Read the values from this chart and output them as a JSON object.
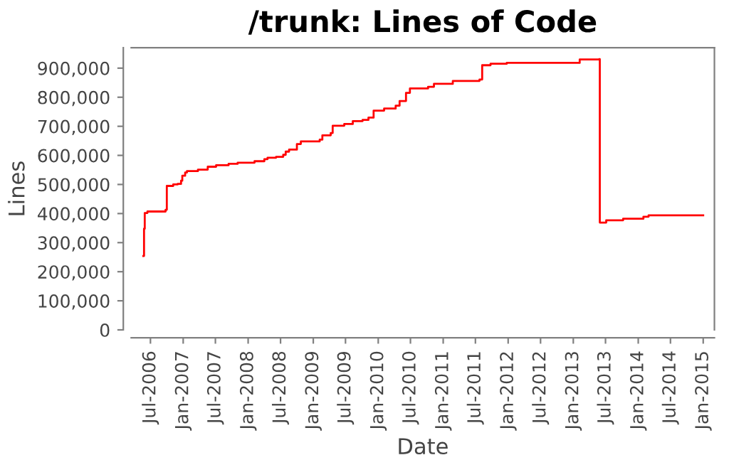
{
  "chart_data": {
    "type": "step",
    "title": "/trunk: Lines of Code",
    "xlabel": "Date",
    "ylabel": "Lines",
    "x": [
      "2006-05-22",
      "2006-05-26",
      "2006-05-30",
      "2006-06-14",
      "2006-09-24",
      "2006-10-01",
      "2006-11-06",
      "2006-12-01",
      "2006-12-20",
      "2006-12-27",
      "2007-01-12",
      "2007-01-22",
      "2007-03-25",
      "2007-05-19",
      "2007-07-05",
      "2007-09-13",
      "2007-11-03",
      "2008-02-06",
      "2008-04-01",
      "2008-04-19",
      "2008-06-06",
      "2008-07-16",
      "2008-07-30",
      "2008-08-18",
      "2008-10-01",
      "2008-10-23",
      "2009-02-06",
      "2009-02-21",
      "2009-04-09",
      "2009-04-20",
      "2009-06-24",
      "2009-08-11",
      "2009-10-05",
      "2009-11-07",
      "2009-12-06",
      "2010-02-03",
      "2010-04-09",
      "2010-05-01",
      "2010-06-06",
      "2010-06-28",
      "2010-10-08",
      "2010-11-10",
      "2011-02-24",
      "2011-07-24",
      "2011-08-08",
      "2011-09-24",
      "2011-12-24",
      "2013-02-06",
      "2013-05-27",
      "2013-05-30",
      "2013-07-05",
      "2013-10-08",
      "2014-01-30",
      "2014-02-28",
      "2015-01-01"
    ],
    "series": [
      {
        "color": "#ff0000",
        "values": [
          254000,
          348000,
          402000,
          407000,
          413000,
          495000,
          500000,
          502000,
          513000,
          530000,
          541000,
          546000,
          551000,
          561000,
          566000,
          571000,
          575000,
          580000,
          587000,
          592000,
          595000,
          602000,
          613000,
          620000,
          639000,
          648000,
          654000,
          669000,
          677000,
          702000,
          708000,
          718000,
          722000,
          730000,
          754000,
          761000,
          771000,
          787000,
          815000,
          830000,
          836000,
          846000,
          856000,
          861000,
          910000,
          915000,
          918000,
          930000,
          931000,
          369000,
          377000,
          382000,
          389000,
          394000,
          394000
        ]
      }
    ],
    "xlim": [
      "2006-03-15",
      "2015-03-05"
    ],
    "xticks": [
      {
        "value": "2006-07-01",
        "label": "Jul-2006"
      },
      {
        "value": "2007-01-01",
        "label": "Jan-2007"
      },
      {
        "value": "2007-07-01",
        "label": "Jul-2007"
      },
      {
        "value": "2008-01-01",
        "label": "Jan-2008"
      },
      {
        "value": "2008-07-01",
        "label": "Jul-2008"
      },
      {
        "value": "2009-01-01",
        "label": "Jan-2009"
      },
      {
        "value": "2009-07-01",
        "label": "Jul-2009"
      },
      {
        "value": "2010-01-01",
        "label": "Jan-2010"
      },
      {
        "value": "2010-07-01",
        "label": "Jul-2010"
      },
      {
        "value": "2011-01-01",
        "label": "Jan-2011"
      },
      {
        "value": "2011-07-01",
        "label": "Jul-2011"
      },
      {
        "value": "2012-01-01",
        "label": "Jan-2012"
      },
      {
        "value": "2012-07-01",
        "label": "Jul-2012"
      },
      {
        "value": "2013-01-01",
        "label": "Jan-2013"
      },
      {
        "value": "2013-07-01",
        "label": "Jul-2013"
      },
      {
        "value": "2014-01-01",
        "label": "Jan-2014"
      },
      {
        "value": "2014-07-01",
        "label": "Jul-2014"
      },
      {
        "value": "2015-01-01",
        "label": "Jan-2015"
      }
    ],
    "ylim": [
      0,
      970000
    ],
    "yticks": [
      0,
      {
        "value": 100000,
        "label": "100,000"
      },
      {
        "value": 200000,
        "label": "200,000"
      },
      {
        "value": 300000,
        "label": "300,000"
      },
      {
        "value": 400000,
        "label": "400,000"
      },
      {
        "value": 500000,
        "label": "500,000"
      },
      {
        "value": 600000,
        "label": "600,000"
      },
      {
        "value": 700000,
        "label": "700,000"
      },
      {
        "value": 800000,
        "label": "800,000"
      },
      {
        "value": 900000,
        "label": "900,000"
      }
    ],
    "grid": false,
    "legend": false,
    "marker": "none",
    "line_style": "solid"
  }
}
